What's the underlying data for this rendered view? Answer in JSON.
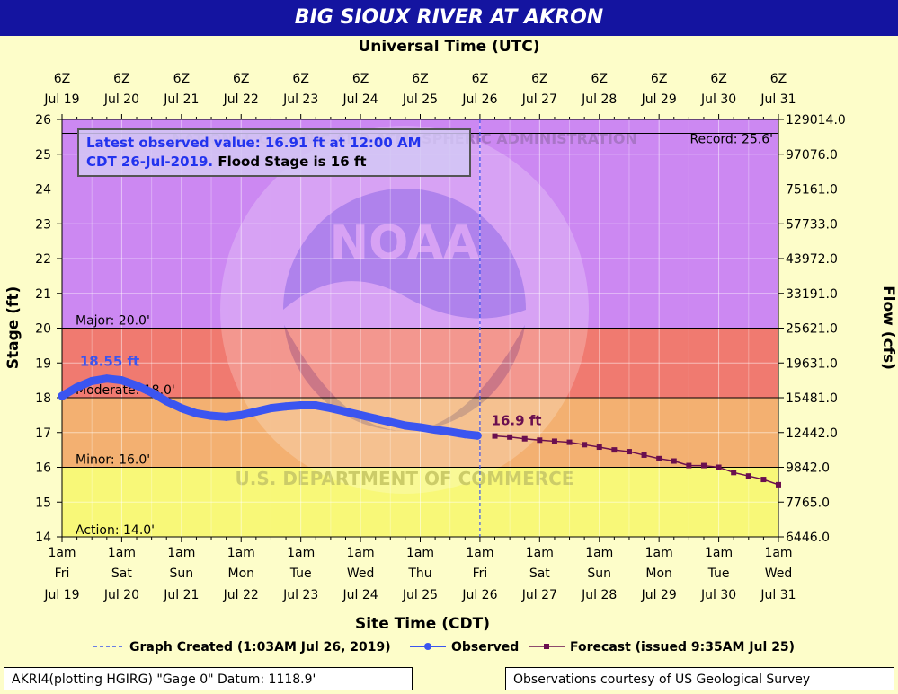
{
  "title": "BIG SIOUX RIVER AT AKRON",
  "top_axis_title": "Universal Time (UTC)",
  "bottom_axis_title": "Site Time (CDT)",
  "info": {
    "line1": "Latest observed value: 16.91 ft at 12:00 AM",
    "line2a": "CDT 26-Jul-2019.",
    "line2b": " Flood Stage is 16 ft"
  },
  "footer_left": "AKRI4(plotting HGIRG) \"Gage 0\" Datum: 1118.9'",
  "footer_right": "Observations courtesy of US Geological Survey",
  "legend": {
    "graph_created": "Graph Created (1:03AM Jul 26, 2019)",
    "observed": "Observed",
    "forecast": "Forecast (issued 9:35AM Jul 25)"
  },
  "watermark": {
    "logo_text": "NOAA",
    "ring_text_top": "NATIONAL OCEANIC AND ATMOSPHERIC ADMINISTRATION",
    "ring_text_bottom": "U.S. DEPARTMENT OF COMMERCE"
  },
  "colors": {
    "record_band": "#cc88f2",
    "major_band": "#f07a70",
    "moderate_band": "#f3b071",
    "minor_band": "#f8f878",
    "observed": "#3b55f0",
    "forecast": "#6a0f4f",
    "title_bar": "#1414a0"
  },
  "chart_data": {
    "type": "line",
    "ylim": [
      14,
      26
    ],
    "ylabel": "Stage (ft)",
    "y2label": "Flow (cfs)",
    "y_ticks": [
      14,
      15,
      16,
      17,
      18,
      19,
      20,
      21,
      22,
      23,
      24,
      25,
      26
    ],
    "y2_ticks": [
      {
        "stage": 14,
        "label": "6446.0"
      },
      {
        "stage": 15,
        "label": "7765.0"
      },
      {
        "stage": 16,
        "label": "9842.0"
      },
      {
        "stage": 17,
        "label": "12442.0"
      },
      {
        "stage": 18,
        "label": "15481.0"
      },
      {
        "stage": 19,
        "label": "19631.0"
      },
      {
        "stage": 20,
        "label": "25621.0"
      },
      {
        "stage": 21,
        "label": "33191.0"
      },
      {
        "stage": 22,
        "label": "43972.0"
      },
      {
        "stage": 23,
        "label": "57733.0"
      },
      {
        "stage": 24,
        "label": "75161.0"
      },
      {
        "stage": 25,
        "label": "97076.0"
      },
      {
        "stage": 26,
        "label": "129014.0"
      }
    ],
    "x_ticks": [
      {
        "top1": "6Z",
        "top2": "Jul 19",
        "b1": "1am",
        "b2": "Fri",
        "b3": "Jul 19"
      },
      {
        "top1": "6Z",
        "top2": "Jul 20",
        "b1": "1am",
        "b2": "Sat",
        "b3": "Jul 20"
      },
      {
        "top1": "6Z",
        "top2": "Jul 21",
        "b1": "1am",
        "b2": "Sun",
        "b3": "Jul 21"
      },
      {
        "top1": "6Z",
        "top2": "Jul 22",
        "b1": "1am",
        "b2": "Mon",
        "b3": "Jul 22"
      },
      {
        "top1": "6Z",
        "top2": "Jul 23",
        "b1": "1am",
        "b2": "Tue",
        "b3": "Jul 23"
      },
      {
        "top1": "6Z",
        "top2": "Jul 24",
        "b1": "1am",
        "b2": "Wed",
        "b3": "Jul 24"
      },
      {
        "top1": "6Z",
        "top2": "Jul 25",
        "b1": "1am",
        "b2": "Thu",
        "b3": "Jul 25"
      },
      {
        "top1": "6Z",
        "top2": "Jul 26",
        "b1": "1am",
        "b2": "Fri",
        "b3": "Jul 26"
      },
      {
        "top1": "6Z",
        "top2": "Jul 27",
        "b1": "1am",
        "b2": "Sat",
        "b3": "Jul 27"
      },
      {
        "top1": "6Z",
        "top2": "Jul 28",
        "b1": "1am",
        "b2": "Sun",
        "b3": "Jul 28"
      },
      {
        "top1": "6Z",
        "top2": "Jul 29",
        "b1": "1am",
        "b2": "Mon",
        "b3": "Jul 29"
      },
      {
        "top1": "6Z",
        "top2": "Jul 30",
        "b1": "1am",
        "b2": "Tue",
        "b3": "Jul 30"
      },
      {
        "top1": "6Z",
        "top2": "Jul 31",
        "b1": "1am",
        "b2": "Wed",
        "b3": "Jul 31"
      }
    ],
    "thresholds": [
      {
        "name": "Record",
        "label": "Record: 25.6'",
        "value": 25.6
      },
      {
        "name": "Major",
        "label": "Major: 20.0'",
        "value": 20.0
      },
      {
        "name": "Moderate",
        "label": "Moderate: 18.0'",
        "value": 18.0
      },
      {
        "name": "Minor",
        "label": "Minor: 16.0'",
        "value": 16.0
      },
      {
        "name": "Action",
        "label": "Action: 14.0'",
        "value": 14.0
      }
    ],
    "graph_created_day": 7.0,
    "observed": {
      "name": "Observed",
      "x_days": [
        0.0,
        0.25,
        0.5,
        0.75,
        1.0,
        1.25,
        1.5,
        1.75,
        2.0,
        2.25,
        2.5,
        2.75,
        3.0,
        3.25,
        3.5,
        3.75,
        4.0,
        4.25,
        4.5,
        4.75,
        5.0,
        5.25,
        5.5,
        5.75,
        6.0,
        6.25,
        6.5,
        6.75,
        6.96
      ],
      "y": [
        18.05,
        18.3,
        18.48,
        18.55,
        18.5,
        18.35,
        18.15,
        17.9,
        17.7,
        17.55,
        17.48,
        17.45,
        17.5,
        17.6,
        17.7,
        17.75,
        17.78,
        17.78,
        17.7,
        17.6,
        17.5,
        17.4,
        17.3,
        17.2,
        17.15,
        17.08,
        17.02,
        16.95,
        16.91
      ]
    },
    "observed_peak_label": "18.55 ft",
    "observed_peak": {
      "x_day": 0.75,
      "y": 18.55
    },
    "forecast": {
      "name": "Forecast (issued 9:35AM Jul 25)",
      "x_days": [
        7.25,
        7.5,
        7.75,
        8.0,
        8.25,
        8.5,
        8.75,
        9.0,
        9.25,
        9.5,
        9.75,
        10.0,
        10.25,
        10.5,
        10.75,
        11.0,
        11.25,
        11.5,
        11.75,
        12.0
      ],
      "y": [
        16.9,
        16.87,
        16.82,
        16.78,
        16.75,
        16.72,
        16.65,
        16.58,
        16.5,
        16.45,
        16.35,
        16.25,
        16.18,
        16.05,
        16.05,
        16.0,
        15.85,
        15.75,
        15.65,
        15.5
      ]
    },
    "forecast_label": "16.9 ft",
    "forecast_label_point": {
      "x_day": 7.25,
      "y": 16.9
    }
  }
}
